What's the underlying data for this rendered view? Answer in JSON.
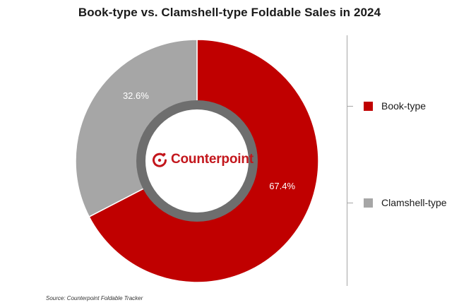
{
  "title": "Book-type vs. Clamshell-type Foldable Sales in 2024",
  "source": "Source: Counterpoint Foldable Tracker",
  "logo": {
    "text": "Counterpoint",
    "icon": "counterpoint-logo-icon"
  },
  "colors": {
    "book_type": "#c00000",
    "clamshell_type": "#a6a6a6",
    "inner_ring": "#6e6e6e",
    "brand": "#c3161c"
  },
  "chart_data": {
    "type": "pie",
    "donut": true,
    "title": "Book-type vs. Clamshell-type Foldable Sales in 2024",
    "series": [
      {
        "name": "Book-type",
        "value": 67.4,
        "label": "67.4%",
        "color": "#c00000"
      },
      {
        "name": "Clamshell-type",
        "value": 32.6,
        "label": "32.6%",
        "color": "#a6a6a6"
      }
    ],
    "start_angle_deg": 0,
    "direction": "clockwise",
    "legend_position": "right"
  }
}
